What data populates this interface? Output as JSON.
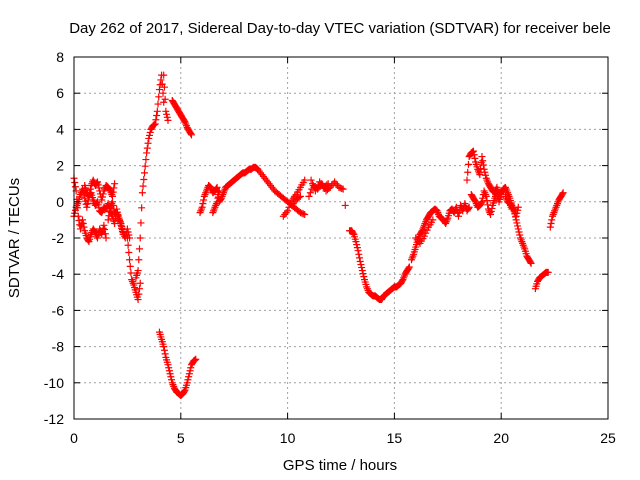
{
  "chart_data": {
    "type": "scatter",
    "title": "Day 262 of 2017, Sidereal Day-to-day VTEC variation (SDTVAR) for receiver bele",
    "xlabel": "GPS time / hours",
    "ylabel": "SDTVAR / TECUs",
    "xlim": [
      0,
      25
    ],
    "ylim": [
      -12,
      8
    ],
    "xticks": [
      0,
      5,
      10,
      15,
      20,
      25
    ],
    "yticks": [
      -12,
      -10,
      -8,
      -6,
      -4,
      -2,
      0,
      2,
      4,
      6,
      8
    ],
    "grid": true,
    "marker": "plus",
    "color": "#ff0000",
    "segments": [
      {
        "name": "early-a",
        "x": [
          0.0,
          0.1,
          0.2,
          0.3,
          0.4,
          0.5,
          0.6,
          0.7,
          0.8,
          0.9,
          1.0,
          1.1,
          1.2,
          1.3,
          1.4,
          1.5
        ],
        "y": [
          1.3,
          0.6,
          -0.8,
          -1.5,
          -1.0,
          -1.6,
          -2.0,
          -2.2,
          -1.8,
          -1.5,
          -1.7,
          -2.0,
          -1.5,
          -1.8,
          -1.3,
          -2.0
        ]
      },
      {
        "name": "early-b",
        "x": [
          0.0,
          0.1,
          0.2,
          0.3,
          0.4,
          0.5,
          0.6,
          0.7,
          0.8,
          0.9,
          1.0,
          1.1,
          1.2,
          1.3,
          1.4,
          1.5,
          1.6,
          1.7,
          1.8,
          1.9
        ],
        "y": [
          -0.8,
          -0.3,
          0.0,
          0.4,
          0.7,
          0.2,
          -0.3,
          0.3,
          0.9,
          1.2,
          0.9,
          1.1,
          0.6,
          0.1,
          0.6,
          0.9,
          0.8,
          0.6,
          0.3,
          1.0
        ]
      },
      {
        "name": "early-c",
        "x": [
          0.5,
          0.6,
          0.7,
          0.8,
          0.9,
          1.0,
          1.1,
          1.2,
          1.3,
          1.4,
          1.5,
          1.6,
          1.7,
          1.8,
          1.9,
          2.0,
          2.1,
          2.2,
          2.3
        ],
        "y": [
          0.9,
          0.5,
          0.3,
          0.5,
          0.1,
          -0.2,
          0.0,
          -0.5,
          -0.6,
          -0.3,
          -0.4,
          -0.1,
          -0.5,
          -0.8,
          -1.2,
          -0.4,
          -0.9,
          -1.3,
          -1.8
        ]
      },
      {
        "name": "early-d",
        "x": [
          1.6,
          1.7,
          1.8,
          1.9,
          2.0,
          2.1,
          2.2,
          2.3,
          2.4,
          2.5,
          2.6
        ],
        "y": [
          -1.0,
          -0.3,
          0.0,
          -0.6,
          -0.6,
          -0.9,
          -1.2,
          -1.7,
          -2.0,
          -1.5,
          -2.0
        ]
      },
      {
        "name": "trough-1",
        "x": [
          2.5,
          2.6,
          2.7,
          2.8,
          2.9,
          3.0,
          3.1
        ],
        "y": [
          -2.0,
          -3.2,
          -4.3,
          -4.6,
          -5.0,
          -5.4,
          -4.5
        ]
      },
      {
        "name": "climb-1",
        "x": [
          2.9,
          3.0,
          3.1,
          3.2,
          3.3,
          3.4,
          3.5,
          3.6,
          3.7,
          3.8,
          3.9,
          4.0,
          4.1,
          4.2
        ],
        "y": [
          -4.2,
          -3.8,
          -2.0,
          0.5,
          1.6,
          2.7,
          3.5,
          4.0,
          4.2,
          4.3,
          5.0,
          6.2,
          7.0,
          5.5
        ]
      },
      {
        "name": "peak-down",
        "x": [
          4.2,
          4.3,
          4.4
        ],
        "y": [
          7.0,
          5.0,
          4.5
        ]
      },
      {
        "name": "high-tail",
        "x": [
          4.6,
          4.7,
          4.8,
          4.9,
          5.0,
          5.1,
          5.2,
          5.3,
          5.4,
          5.5
        ],
        "y": [
          5.6,
          5.4,
          5.2,
          5.0,
          4.8,
          4.6,
          4.4,
          4.1,
          3.9,
          3.7
        ]
      },
      {
        "name": "deep-dip",
        "x": [
          4.0,
          4.1,
          4.2,
          4.3,
          4.4,
          4.5,
          4.6,
          4.7,
          4.8,
          4.9,
          5.0,
          5.1,
          5.2,
          5.3,
          5.4,
          5.5,
          5.6,
          5.7
        ],
        "y": [
          -7.2,
          -7.6,
          -8.0,
          -8.6,
          -9.0,
          -9.5,
          -10.0,
          -10.3,
          -10.5,
          -10.6,
          -10.7,
          -10.6,
          -10.4,
          -10.0,
          -9.5,
          -9.0,
          -8.8,
          -8.7
        ]
      },
      {
        "name": "mid-a",
        "x": [
          5.9,
          6.0,
          6.1,
          6.2,
          6.3,
          6.4,
          6.5,
          6.6,
          6.7,
          6.8,
          6.9,
          7.0,
          7.1,
          7.2,
          7.3,
          7.4,
          7.5,
          7.6,
          7.7,
          7.8,
          7.9,
          8.0,
          8.1,
          8.2,
          8.3,
          8.4,
          8.5,
          8.6
        ],
        "y": [
          -0.6,
          -0.3,
          0.3,
          0.6,
          0.9,
          0.8,
          0.5,
          0.6,
          0.8,
          0.0,
          0.2,
          0.5,
          0.8,
          0.9,
          1.0,
          1.1,
          1.2,
          1.3,
          1.4,
          1.5,
          1.6,
          1.6,
          1.7,
          1.8,
          1.8,
          1.9,
          1.9,
          1.8
        ]
      },
      {
        "name": "mid-b",
        "x": [
          6.5,
          6.6,
          6.7,
          6.8
        ],
        "y": [
          -0.6,
          -0.3,
          0.0,
          0.6
        ]
      },
      {
        "name": "mid-c",
        "x": [
          8.6,
          8.8,
          9.0,
          9.2,
          9.4,
          9.6,
          9.8,
          10.0,
          10.2,
          10.4,
          10.6,
          10.8
        ],
        "y": [
          1.8,
          1.5,
          1.2,
          0.9,
          0.6,
          0.4,
          0.2,
          0.0,
          -0.2,
          -0.4,
          -0.6,
          -0.7
        ]
      },
      {
        "name": "mid-d",
        "x": [
          9.8,
          10.0,
          10.2,
          10.4,
          10.6,
          10.8
        ],
        "y": [
          -0.8,
          -0.5,
          0.1,
          0.4,
          0.8,
          1.2
        ]
      },
      {
        "name": "mid-e",
        "x": [
          10.2,
          10.4,
          10.6
        ],
        "y": [
          -0.2,
          0.1,
          0.3
        ]
      },
      {
        "name": "mid-f",
        "x": [
          11.0,
          11.2,
          11.4,
          11.6,
          11.8,
          12.0,
          12.2,
          12.4,
          12.6
        ],
        "y": [
          0.3,
          0.9,
          0.7,
          1.0,
          0.6,
          0.8,
          1.1,
          0.8,
          0.7
        ]
      },
      {
        "name": "mid-g",
        "x": [
          11.1,
          11.3,
          11.5,
          11.7,
          11.9
        ],
        "y": [
          1.2,
          0.6,
          1.1,
          0.8,
          1.0
        ]
      },
      {
        "name": "isolated",
        "x": [
          12.7
        ],
        "y": [
          -0.2
        ]
      },
      {
        "name": "valley",
        "x": [
          12.9,
          13.0,
          13.1,
          13.2,
          13.3,
          13.4,
          13.5,
          13.6,
          13.7,
          13.8,
          13.9,
          14.0,
          14.1,
          14.2,
          14.3,
          14.4,
          14.5,
          14.6,
          14.7,
          14.8,
          14.9,
          15.0,
          15.1,
          15.2,
          15.3,
          15.4,
          15.5,
          15.6,
          15.7
        ],
        "y": [
          -1.6,
          -1.6,
          -1.8,
          -2.2,
          -2.7,
          -3.3,
          -3.8,
          -4.3,
          -4.7,
          -5.0,
          -5.1,
          -5.2,
          -5.2,
          -5.3,
          -5.4,
          -5.4,
          -5.2,
          -5.1,
          -5.0,
          -4.9,
          -4.8,
          -4.7,
          -4.7,
          -4.6,
          -4.5,
          -4.3,
          -4.0,
          -3.8,
          -3.6
        ]
      },
      {
        "name": "rise-a",
        "x": [
          15.8,
          15.9,
          16.0,
          16.1,
          16.2,
          16.3,
          16.4,
          16.5,
          16.6,
          16.7,
          16.8,
          16.9,
          17.0,
          17.1,
          17.2,
          17.3,
          17.4,
          17.5,
          17.6,
          17.7,
          17.8,
          17.9,
          18.0,
          18.1,
          18.2,
          18.3,
          18.4,
          18.5
        ],
        "y": [
          -3.2,
          -2.9,
          -2.5,
          -2.1,
          -1.8,
          -1.6,
          -1.3,
          -1.0,
          -0.8,
          -0.6,
          -0.5,
          -0.4,
          -0.5,
          -0.8,
          -0.9,
          -1.0,
          -1.2,
          -0.9,
          -0.5,
          -0.4,
          -0.6,
          -0.3,
          -0.8,
          -0.2,
          -0.5,
          -0.1,
          -0.5,
          -0.3
        ]
      },
      {
        "name": "rise-b",
        "x": [
          16.0,
          16.2,
          16.4,
          16.6,
          16.8
        ],
        "y": [
          -2.0,
          -2.3,
          -1.9,
          -1.4,
          -1.0
        ]
      },
      {
        "name": "spike-a",
        "x": [
          18.4,
          18.5,
          18.6,
          18.7,
          18.8,
          18.9,
          19.0,
          19.1,
          19.2,
          19.3,
          19.4,
          19.5,
          19.6,
          19.7,
          19.8,
          19.9,
          20.0,
          20.1,
          20.2,
          20.3,
          20.4,
          20.5,
          20.6,
          20.7,
          20.8,
          20.9,
          21.0,
          21.1,
          21.2,
          21.3,
          21.4
        ],
        "y": [
          1.2,
          2.5,
          2.7,
          2.8,
          2.2,
          1.8,
          1.5,
          2.5,
          1.8,
          1.3,
          1.0,
          0.8,
          0.6,
          0.5,
          0.8,
          0.4,
          0.5,
          0.7,
          0.8,
          0.5,
          0.2,
          -0.2,
          -0.5,
          -1.0,
          -1.5,
          -2.0,
          -2.3,
          -2.6,
          -3.0,
          -3.2,
          -3.4
        ]
      },
      {
        "name": "spike-b",
        "x": [
          18.6,
          18.7,
          18.8,
          18.9,
          19.0,
          19.1,
          19.2,
          19.3,
          19.4,
          19.5,
          19.6,
          19.7,
          19.8,
          19.9,
          20.0
        ],
        "y": [
          0.4,
          0.2,
          0.0,
          -0.3,
          -0.2,
          0.0,
          0.6,
          0.3,
          -0.4,
          -0.7,
          -0.2,
          0.2,
          0.5,
          0.0,
          0.4
        ]
      },
      {
        "name": "spike-c",
        "x": [
          20.2,
          20.3,
          20.4,
          20.5,
          20.6,
          20.7,
          20.8
        ],
        "y": [
          0.3,
          0.0,
          -0.1,
          -0.4,
          -0.3,
          -0.8,
          -0.3
        ]
      },
      {
        "name": "late-a",
        "x": [
          21.6,
          21.7,
          21.8,
          21.9,
          22.0,
          22.1,
          22.2
        ],
        "y": [
          -4.8,
          -4.4,
          -4.2,
          -4.1,
          -4.0,
          -3.9,
          -3.9
        ]
      },
      {
        "name": "late-b",
        "x": [
          22.3,
          22.4,
          22.5,
          22.6,
          22.7,
          22.8,
          22.9
        ],
        "y": [
          -1.4,
          -0.8,
          -0.5,
          -0.2,
          0.1,
          0.3,
          0.5
        ]
      }
    ]
  }
}
